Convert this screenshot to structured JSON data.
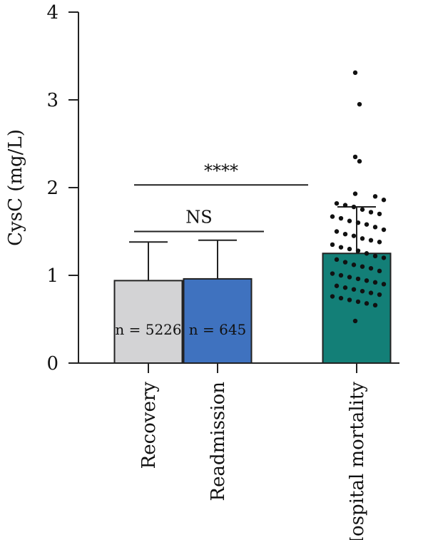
{
  "chart_data": {
    "type": "bar",
    "ylabel": "CysC (mg/L)",
    "ylim": [
      0,
      4
    ],
    "yticks": [
      0,
      1,
      2,
      3,
      4
    ],
    "categories": [
      "Recovery",
      "Readmission",
      "Hospital mortality"
    ],
    "values": [
      0.94,
      0.96,
      1.25
    ],
    "error_upper": [
      1.38,
      1.4,
      1.78
    ],
    "bar_colors": [
      "#d3d3d5",
      "#3f72bf",
      "#137f77"
    ],
    "n_labels": [
      "n = 5226",
      "n = 645",
      ""
    ],
    "points": [
      {
        "category": "Hospital mortality",
        "values": [
          3.31,
          2.95,
          2.35,
          2.3,
          1.93,
          1.9,
          1.86,
          1.82,
          1.8,
          1.78,
          1.75,
          1.72,
          1.7,
          1.67,
          1.65,
          1.62,
          1.6,
          1.58,
          1.55,
          1.52,
          1.5,
          1.47,
          1.45,
          1.42,
          1.4,
          1.38,
          1.35,
          1.32,
          1.3,
          1.28,
          1.25,
          1.22,
          1.2,
          1.18,
          1.15,
          1.12,
          1.1,
          1.08,
          1.05,
          1.02,
          1.0,
          0.98,
          0.96,
          0.94,
          0.92,
          0.9,
          0.88,
          0.86,
          0.84,
          0.82,
          0.8,
          0.78,
          0.76,
          0.74,
          0.72,
          0.7,
          0.68,
          0.66,
          0.48
        ]
      }
    ],
    "significance": [
      {
        "from": "Recovery",
        "to": "Readmission",
        "label": "NS",
        "y": 1.5
      },
      {
        "from": "Recovery",
        "to": "Hospital mortality",
        "label": "****",
        "y": 2.03
      }
    ],
    "grid": false
  }
}
